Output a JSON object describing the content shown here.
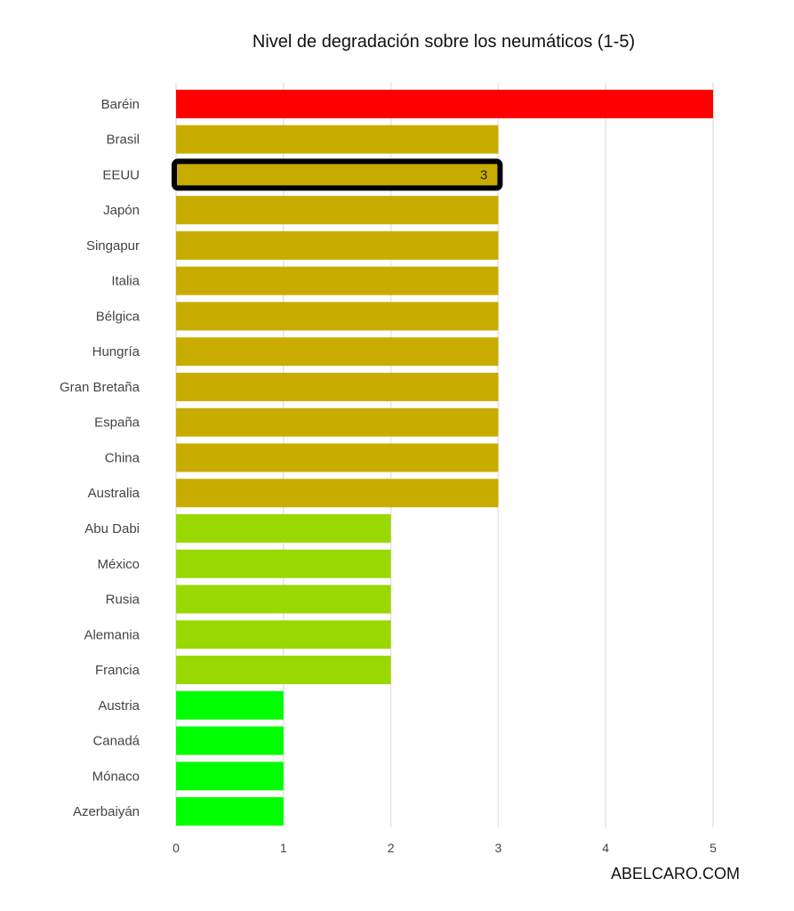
{
  "chart_data": {
    "type": "bar",
    "orientation": "horizontal",
    "title": "Nivel de degradación sobre los neumáticos (1-5)",
    "credit": "ABELCARO.COM",
    "xlabel": "",
    "ylabel": "",
    "xlim": [
      0,
      5
    ],
    "x_ticks": [
      "0",
      "1",
      "2",
      "3",
      "4",
      "5"
    ],
    "grid": "vertical",
    "categories": [
      "Baréin",
      "Brasil",
      "EEUU",
      "Japón",
      "Singapur",
      "Italia",
      "Bélgica",
      "Hungría",
      "Gran Bretaña",
      "España",
      "China",
      "Australia",
      "Abu Dabi",
      "México",
      "Rusia",
      "Alemania",
      "Francia",
      "Austria",
      "Canadá",
      "Mónaco",
      "Azerbaiyán"
    ],
    "values": [
      5,
      3,
      3,
      3,
      3,
      3,
      3,
      3,
      3,
      3,
      3,
      3,
      2,
      2,
      2,
      2,
      2,
      1,
      1,
      1,
      1
    ],
    "value_colors": {
      "5": "#ff0000",
      "3": "#c8ad00",
      "2": "#99d800",
      "1": "#00ff00"
    },
    "highlight": {
      "category": "EEUU",
      "label": "3",
      "outline_color": "#000000"
    }
  }
}
